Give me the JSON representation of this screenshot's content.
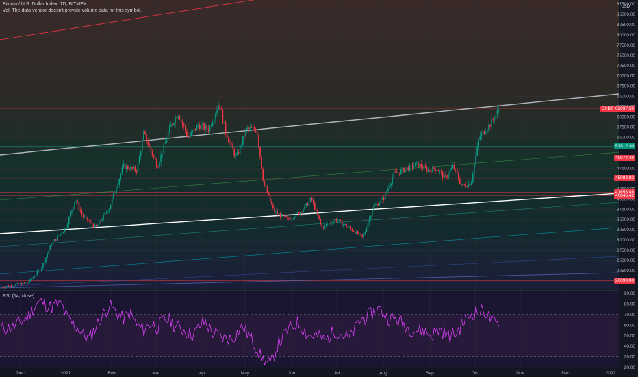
{
  "symbol": {
    "title": "Bitcoin / U.S. Dollar Index, 1D, BITMEX",
    "volume_note": "Vol: The data vendor doesn't provide volume data for this symbol.",
    "currency": "USD"
  },
  "rsi": {
    "label": "RSI (14, close)"
  },
  "price_axis": {
    "labels": [
      "87500.00",
      "85000.00",
      "82500.00",
      "80000.00",
      "77500.00",
      "75000.00",
      "72500.00",
      "70000.00",
      "67500.00",
      "65000.00",
      "62500.00",
      "60000.00",
      "57500.00",
      "55000.00",
      "52500.00",
      "50000.00",
      "47500.00",
      "45000.00",
      "42500.00",
      "40000.00",
      "37500.00",
      "35000.00",
      "32500.00",
      "30000.00",
      "27500.00",
      "25000.00",
      "22500.00",
      "20000.00"
    ]
  },
  "rsi_axis": {
    "labels": [
      "90.00",
      "80.00",
      "70.00",
      "60.00",
      "50.00",
      "40.00",
      "30.00",
      "20.00"
    ]
  },
  "time_axis": {
    "labels": [
      "Dec",
      "2021",
      "Feb",
      "Mar",
      "Apr",
      "May",
      "Jun",
      "Jul",
      "Aug",
      "Sep",
      "Oct",
      "Nov",
      "Dec",
      "2022"
    ]
  },
  "price_tags": [
    {
      "text": "62097.50",
      "prefix": "BXBT",
      "color": "#f23645",
      "price": 62097.5
    },
    {
      "text": "52812.30",
      "color": "#089981",
      "price": 52812.3
    },
    {
      "text": "49974.49",
      "color": "#f23645",
      "price": 49974.49
    },
    {
      "text": "45083.92",
      "color": "#f23645",
      "price": 45083.92
    },
    {
      "text": "41653.08",
      "color": "#f23645",
      "price": 41653.08
    },
    {
      "text": "40846.42",
      "color": "#f23645",
      "price": 40846.42
    },
    {
      "text": "20090.00",
      "color": "#f23645",
      "price": 20090.0
    }
  ],
  "colors": {
    "background": "#131722",
    "up": "#089981",
    "down": "#f23645",
    "rsi_line": "#e040fb",
    "rsi_band": "#2a1a3a",
    "grid": "#1e222d"
  }
}
